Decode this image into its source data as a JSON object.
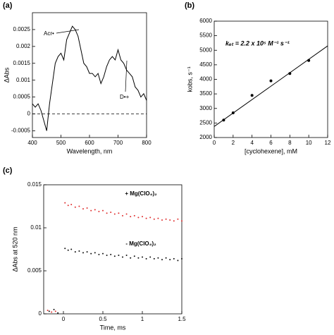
{
  "chart_data": [
    {
      "type": "line",
      "panel_label": "(a)",
      "xlabel": "Wavelength, nm",
      "ylabel": "ΔAbs",
      "xlim": [
        400,
        800
      ],
      "ylim": [
        -0.0007,
        0.003
      ],
      "xticks": [
        400,
        500,
        600,
        700,
        800
      ],
      "yticks": [
        -0.0005,
        0,
        0.0005,
        0.001,
        0.0015,
        0.002,
        0.0025
      ],
      "hline": 0,
      "annotations": [
        "Acr•",
        "D•+"
      ],
      "series": [
        {
          "color": "#000000",
          "x": [
            400,
            410,
            420,
            430,
            440,
            450,
            460,
            470,
            480,
            490,
            500,
            510,
            520,
            530,
            540,
            550,
            560,
            570,
            580,
            590,
            600,
            610,
            620,
            630,
            640,
            650,
            660,
            670,
            680,
            690,
            700,
            710,
            720,
            730,
            740,
            750,
            760,
            770,
            780,
            790,
            800
          ],
          "values": [
            0.0003,
            0.0002,
            0.0003,
            0.0001,
            -0.0002,
            -0.0005,
            0.0003,
            0.0009,
            0.0015,
            0.0017,
            0.0018,
            0.0016,
            0.0022,
            0.0024,
            0.0026,
            0.0025,
            0.0023,
            0.0019,
            0.0015,
            0.0014,
            0.0012,
            0.0012,
            0.0011,
            0.0012,
            0.0009,
            0.0011,
            0.0014,
            0.0016,
            0.0017,
            0.0016,
            0.0019,
            0.0016,
            0.0015,
            0.0013,
            0.0012,
            0.0011,
            0.0008,
            0.0007,
            0.0005,
            0.0006,
            0.0004
          ]
        }
      ]
    },
    {
      "type": "scatter",
      "panel_label": "(b)",
      "xlabel": "[cyclohexene], mM",
      "ylabel": "kobs, s⁻¹",
      "xlim": [
        0,
        12
      ],
      "ylim": [
        2000,
        6000
      ],
      "xticks": [
        0,
        2,
        4,
        6,
        8,
        10,
        12
      ],
      "yticks": [
        2000,
        2500,
        3000,
        3500,
        4000,
        4500,
        5000,
        5500,
        6000
      ],
      "annotations": [
        "kₑₜ = 2.2 x 10⁵ M⁻¹ s⁻¹"
      ],
      "fit": {
        "x": [
          0,
          12
        ],
        "values": [
          2380,
          5150
        ]
      },
      "series": [
        {
          "color": "#000000",
          "x": [
            1,
            2,
            4,
            6,
            8,
            10
          ],
          "values": [
            2600,
            2850,
            3450,
            3950,
            4200,
            4650
          ]
        }
      ]
    },
    {
      "type": "scatter",
      "panel_label": "(c)",
      "xlabel": "Time, ms",
      "ylabel": "ΔAbs at 520 nm",
      "xlim": [
        -0.25,
        1.5
      ],
      "ylim": [
        0,
        0.015
      ],
      "xticks": [
        0,
        0.5,
        1,
        1.5
      ],
      "yticks": [
        0,
        0.005,
        0.01,
        0.015
      ],
      "series": [
        {
          "name": "+ Mg(ClO₄)₂",
          "color": "#e03030",
          "x": [
            -0.2,
            -0.15,
            -0.1,
            0.02,
            0.06,
            0.1,
            0.15,
            0.2,
            0.25,
            0.3,
            0.35,
            0.4,
            0.45,
            0.5,
            0.55,
            0.6,
            0.65,
            0.7,
            0.75,
            0.8,
            0.85,
            0.9,
            0.95,
            1.0,
            1.05,
            1.1,
            1.15,
            1.2,
            1.25,
            1.3,
            1.35,
            1.4,
            1.45,
            1.5
          ],
          "values": [
            0.0004,
            0.0002,
            0.0003,
            0.0129,
            0.0126,
            0.0127,
            0.0124,
            0.0125,
            0.0122,
            0.0123,
            0.012,
            0.0121,
            0.0119,
            0.012,
            0.0117,
            0.0118,
            0.0116,
            0.0117,
            0.0114,
            0.0116,
            0.0113,
            0.0114,
            0.0112,
            0.0113,
            0.0111,
            0.0112,
            0.011,
            0.0111,
            0.0109,
            0.011,
            0.0109,
            0.0108,
            0.011,
            0.0108
          ]
        },
        {
          "name": "- Mg(ClO₄)₂",
          "color": "#111111",
          "x": [
            -0.18,
            -0.12,
            -0.07,
            0.02,
            0.06,
            0.1,
            0.15,
            0.2,
            0.25,
            0.3,
            0.35,
            0.4,
            0.45,
            0.5,
            0.55,
            0.6,
            0.65,
            0.7,
            0.75,
            0.8,
            0.85,
            0.9,
            0.95,
            1.0,
            1.05,
            1.1,
            1.15,
            1.2,
            1.25,
            1.3,
            1.35,
            1.4,
            1.45,
            1.5
          ],
          "values": [
            0.0003,
            0.0005,
            0.0001,
            0.0076,
            0.0074,
            0.0075,
            0.0072,
            0.0073,
            0.0071,
            0.0072,
            0.007,
            0.0071,
            0.0069,
            0.007,
            0.0068,
            0.0069,
            0.0067,
            0.0068,
            0.0066,
            0.0068,
            0.0065,
            0.0067,
            0.0065,
            0.0066,
            0.0064,
            0.0066,
            0.0064,
            0.0065,
            0.0063,
            0.0065,
            0.0063,
            0.0064,
            0.0062,
            0.0064
          ]
        }
      ]
    }
  ]
}
